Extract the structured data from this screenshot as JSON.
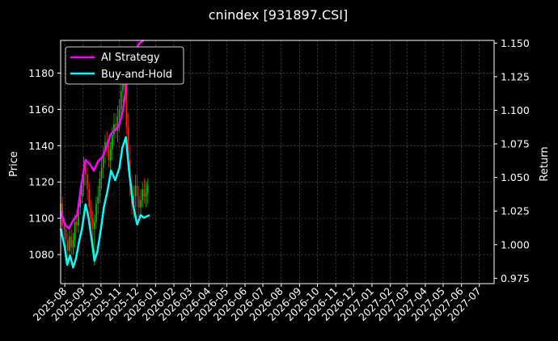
{
  "chart_data": {
    "type": "line",
    "title": "cnindex [931897.CSI]",
    "ylabel_left": "Price",
    "ylabel_right": "Return",
    "left_ylim": [
      1064,
      1198
    ],
    "right_ylim": [
      0.971,
      1.152
    ],
    "left_ticks": [
      1080,
      1100,
      1120,
      1140,
      1160,
      1180
    ],
    "right_ticks": [
      "0.975",
      "1.000",
      "1.025",
      "1.050",
      "1.075",
      "1.100",
      "1.125",
      "1.150"
    ],
    "x_start": "2025-07-25",
    "x_end": "2027-07-26",
    "x_ticks": [
      "2025-08",
      "2025-09",
      "2025-10",
      "2025-11",
      "2025-12",
      "2026-01",
      "2026-02",
      "2026-03",
      "2026-04",
      "2026-05",
      "2026-06",
      "2026-07",
      "2026-08",
      "2026-09",
      "2026-10",
      "2026-11",
      "2026-12",
      "2027-01",
      "2027-02",
      "2027-03",
      "2027-04",
      "2027-05",
      "2027-06",
      "2027-07"
    ],
    "x_tick_dates": [
      "2025-08-01",
      "2025-09-01",
      "2025-10-01",
      "2025-11-01",
      "2025-12-01",
      "2026-01-01",
      "2026-02-01",
      "2026-03-01",
      "2026-04-01",
      "2026-05-01",
      "2026-06-01",
      "2026-07-01",
      "2026-08-01",
      "2026-09-01",
      "2026-10-01",
      "2026-11-01",
      "2026-12-01",
      "2027-01-01",
      "2027-02-01",
      "2027-03-01",
      "2027-04-01",
      "2027-05-01",
      "2027-06-01",
      "2027-07-01"
    ],
    "grid": true,
    "legend_position": "top-left",
    "series": [
      {
        "name": "AI Strategy",
        "axis": "right",
        "color": "#ff00ff",
        "x": [
          "2025-07-25",
          "2025-08-01",
          "2025-08-08",
          "2025-08-15",
          "2025-08-22",
          "2025-08-29",
          "2025-09-05",
          "2025-09-12",
          "2025-09-19",
          "2025-09-26",
          "2025-10-03",
          "2025-10-10",
          "2025-10-17",
          "2025-10-24",
          "2025-10-31",
          "2025-11-07",
          "2025-11-14",
          "2025-11-21",
          "2025-11-28",
          "2025-12-05",
          "2025-12-12"
        ],
        "y": [
          1.025,
          1.015,
          1.012,
          1.018,
          1.022,
          1.045,
          1.063,
          1.06,
          1.055,
          1.062,
          1.065,
          1.072,
          1.082,
          1.085,
          1.088,
          1.1,
          1.122,
          1.14,
          1.145,
          1.15,
          1.152
        ]
      },
      {
        "name": "Buy-and-Hold",
        "axis": "right",
        "color": "#00ffff",
        "x": [
          "2025-07-25",
          "2025-08-01",
          "2025-08-05",
          "2025-08-10",
          "2025-08-15",
          "2025-08-20",
          "2025-08-25",
          "2025-08-30",
          "2025-09-05",
          "2025-09-10",
          "2025-09-15",
          "2025-09-20",
          "2025-09-25",
          "2025-10-01",
          "2025-10-06",
          "2025-10-12",
          "2025-10-18",
          "2025-10-25",
          "2025-11-01",
          "2025-11-06",
          "2025-11-12",
          "2025-11-18",
          "2025-11-24",
          "2025-12-01",
          "2025-12-07",
          "2025-12-12",
          "2025-12-17",
          "2025-12-22"
        ],
        "y": [
          1.012,
          0.998,
          0.985,
          0.992,
          0.983,
          0.99,
          1.002,
          1.012,
          1.03,
          1.02,
          1.005,
          0.988,
          0.995,
          1.012,
          1.028,
          1.04,
          1.055,
          1.048,
          1.057,
          1.072,
          1.08,
          1.052,
          1.03,
          1.015,
          1.022,
          1.02,
          1.021,
          1.022
        ]
      }
    ],
    "candles": {
      "axis": "left",
      "up_color": "#00cc00",
      "down_color": "#ff2200",
      "x": [
        "2025-07-25",
        "2025-07-28",
        "2025-07-31",
        "2025-08-03",
        "2025-08-06",
        "2025-08-09",
        "2025-08-12",
        "2025-08-15",
        "2025-08-18",
        "2025-08-21",
        "2025-08-24",
        "2025-08-27",
        "2025-08-30",
        "2025-09-02",
        "2025-09-05",
        "2025-09-08",
        "2025-09-11",
        "2025-09-14",
        "2025-09-17",
        "2025-09-20",
        "2025-09-23",
        "2025-09-26",
        "2025-09-29",
        "2025-10-02",
        "2025-10-05",
        "2025-10-08",
        "2025-10-11",
        "2025-10-14",
        "2025-10-17",
        "2025-10-20",
        "2025-10-23",
        "2025-10-26",
        "2025-10-29",
        "2025-11-01",
        "2025-11-04",
        "2025-11-07",
        "2025-11-10",
        "2025-11-13",
        "2025-11-16",
        "2025-11-19",
        "2025-11-22",
        "2025-11-25",
        "2025-11-28",
        "2025-12-01",
        "2025-12-04",
        "2025-12-07",
        "2025-12-10",
        "2025-12-13",
        "2025-12-16",
        "2025-12-19"
      ],
      "open": [
        1100,
        1108,
        1096,
        1094,
        1088,
        1082,
        1090,
        1084,
        1088,
        1098,
        1096,
        1106,
        1112,
        1118,
        1130,
        1124,
        1116,
        1106,
        1100,
        1094,
        1098,
        1108,
        1112,
        1122,
        1128,
        1136,
        1142,
        1140,
        1132,
        1138,
        1146,
        1152,
        1148,
        1156,
        1160,
        1170,
        1178,
        1172,
        1150,
        1132,
        1118,
        1108,
        1112,
        1118,
        1112,
        1106,
        1110,
        1116,
        1112,
        1114
      ],
      "close": [
        1108,
        1096,
        1094,
        1088,
        1082,
        1090,
        1084,
        1088,
        1098,
        1096,
        1106,
        1112,
        1118,
        1130,
        1124,
        1116,
        1106,
        1100,
        1094,
        1098,
        1108,
        1112,
        1122,
        1128,
        1136,
        1142,
        1140,
        1132,
        1138,
        1146,
        1152,
        1148,
        1156,
        1160,
        1170,
        1178,
        1172,
        1150,
        1132,
        1118,
        1108,
        1112,
        1118,
        1112,
        1106,
        1110,
        1116,
        1112,
        1114,
        1118
      ],
      "high": [
        1122,
        1112,
        1100,
        1098,
        1092,
        1094,
        1094,
        1092,
        1102,
        1104,
        1110,
        1118,
        1124,
        1134,
        1132,
        1128,
        1120,
        1110,
        1104,
        1102,
        1112,
        1118,
        1126,
        1134,
        1140,
        1146,
        1148,
        1144,
        1142,
        1150,
        1158,
        1158,
        1162,
        1166,
        1176,
        1186,
        1182,
        1176,
        1158,
        1140,
        1124,
        1118,
        1124,
        1124,
        1118,
        1116,
        1120,
        1122,
        1120,
        1122
      ],
      "low": [
        1094,
        1090,
        1088,
        1084,
        1076,
        1078,
        1080,
        1080,
        1084,
        1092,
        1092,
        1102,
        1108,
        1112,
        1118,
        1110,
        1100,
        1094,
        1086,
        1074,
        1094,
        1102,
        1108,
        1116,
        1122,
        1130,
        1134,
        1128,
        1126,
        1132,
        1140,
        1144,
        1142,
        1148,
        1154,
        1164,
        1166,
        1146,
        1126,
        1112,
        1102,
        1100,
        1106,
        1106,
        1100,
        1102,
        1106,
        1108,
        1106,
        1108
      ]
    }
  }
}
